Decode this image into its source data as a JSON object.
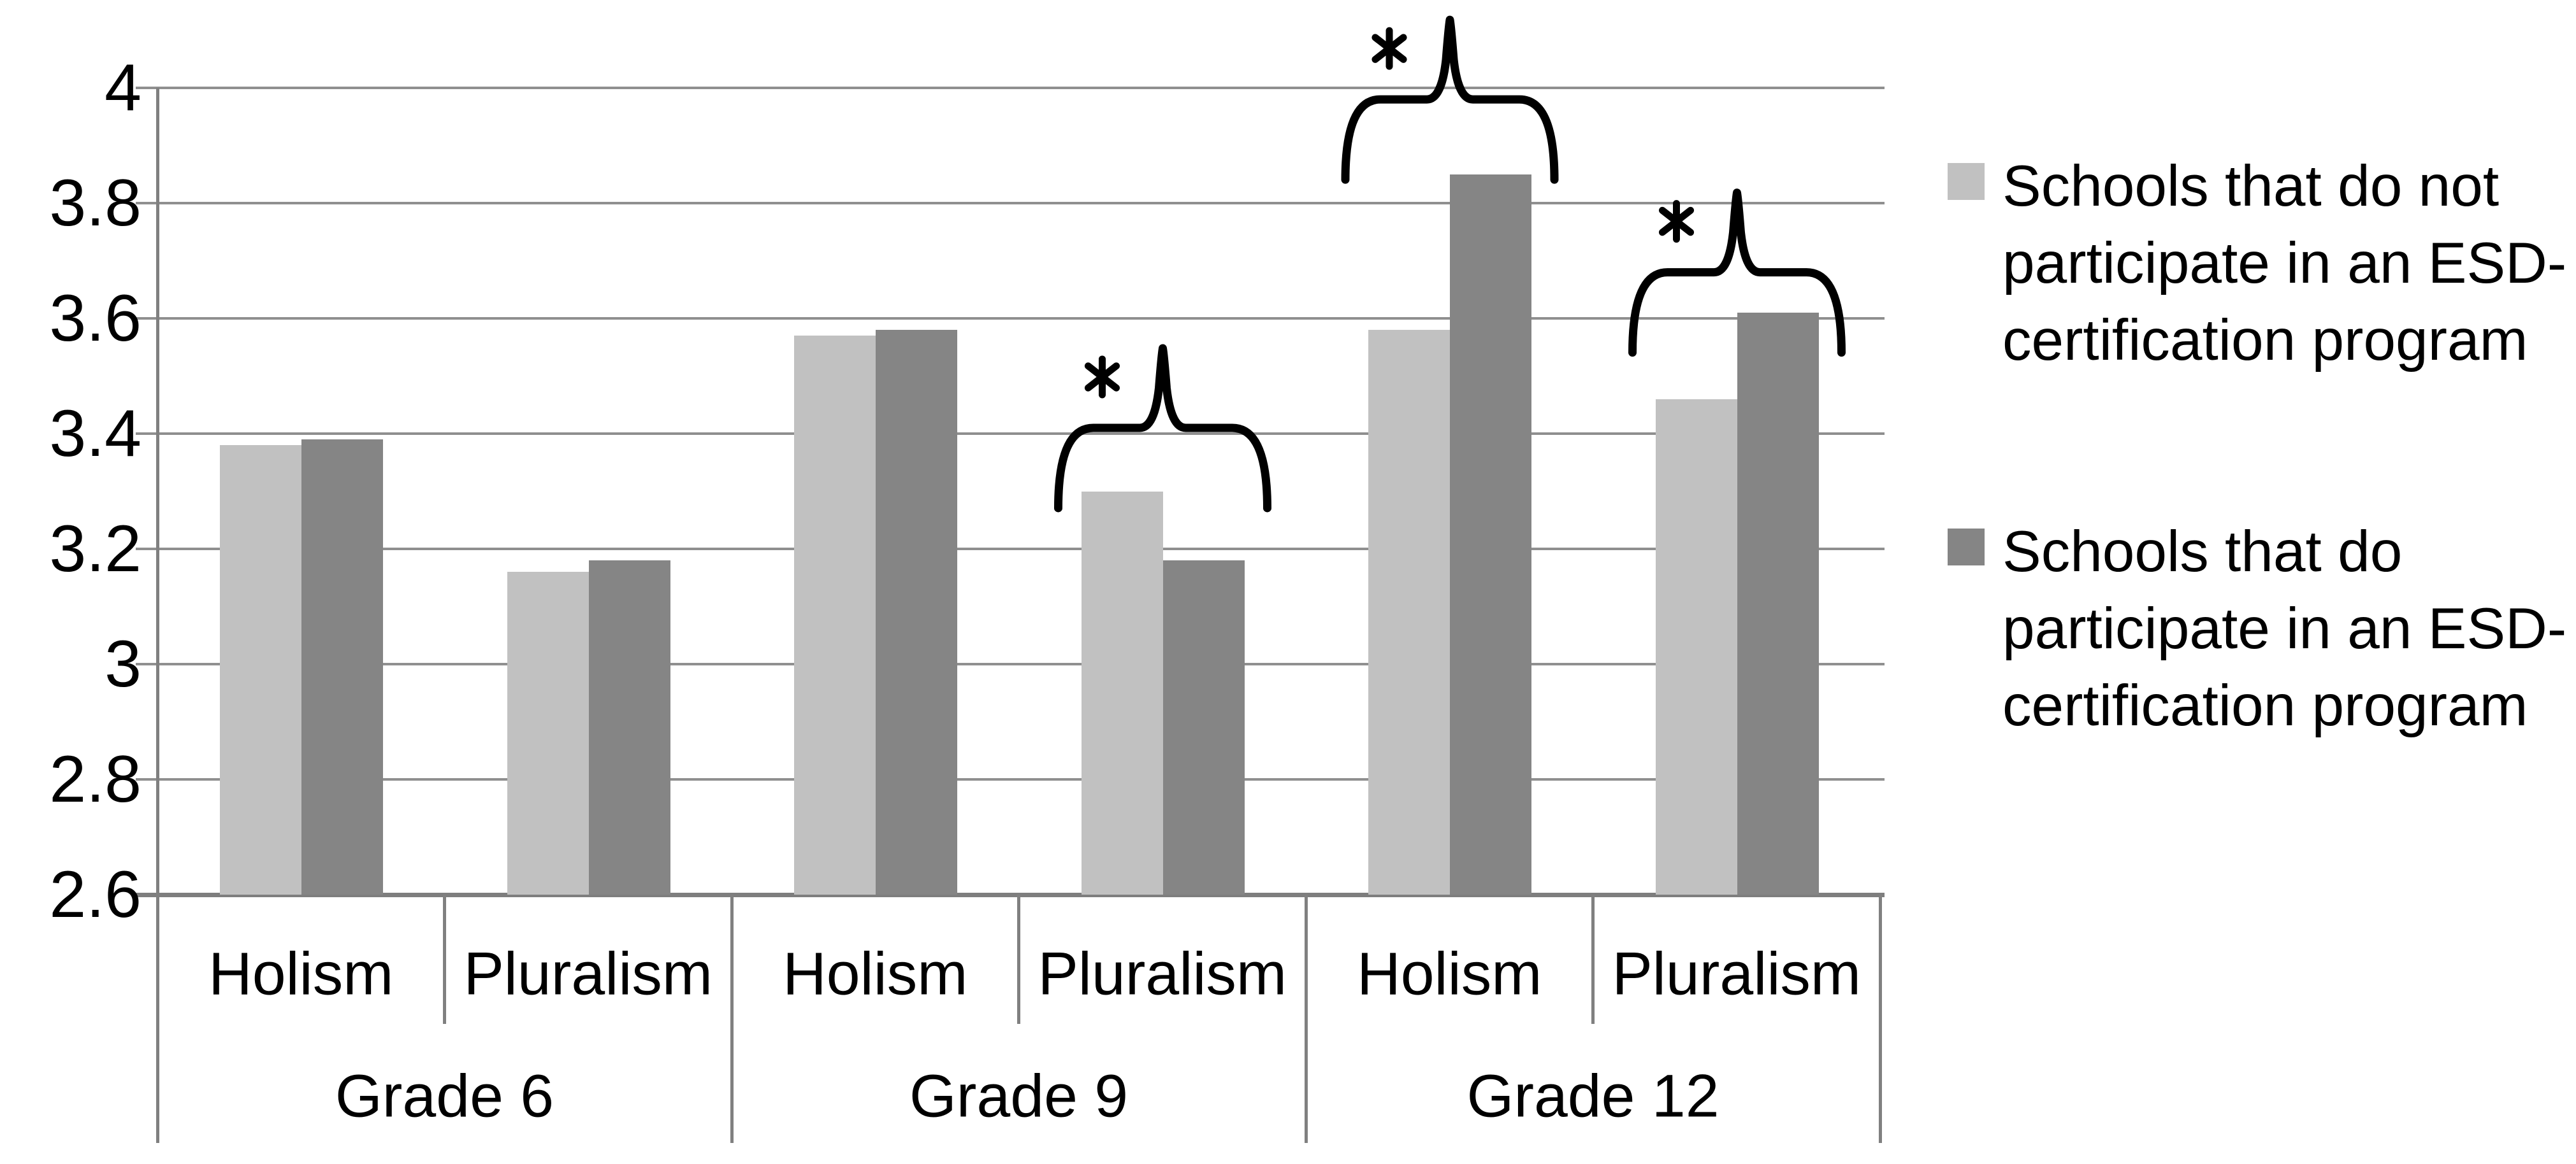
{
  "chart_data": {
    "type": "bar",
    "title": "",
    "y_axis": {
      "min": 2.6,
      "max": 4.0,
      "tick_step": 0.2,
      "tick_labels": [
        "4",
        "3.8",
        "3.6",
        "3.4",
        "3.2",
        "3",
        "2.8",
        "2.6"
      ],
      "grid": true
    },
    "groups": [
      "Grade 6",
      "Grade 9",
      "Grade 12"
    ],
    "cells": [
      {
        "group": "Grade 6",
        "category": "Holism"
      },
      {
        "group": "Grade 6",
        "category": "Pluralism"
      },
      {
        "group": "Grade 9",
        "category": "Holism"
      },
      {
        "group": "Grade 9",
        "category": "Pluralism"
      },
      {
        "group": "Grade 12",
        "category": "Holism"
      },
      {
        "group": "Grade 12",
        "category": "Pluralism"
      }
    ],
    "series": [
      {
        "name": "Schools that do not participate in an ESD-certification program",
        "color": "#c1c1c1",
        "values": [
          3.38,
          3.16,
          3.57,
          3.3,
          3.58,
          3.46
        ]
      },
      {
        "name": "Schools that do participate in an ESD-certification program",
        "color": "#858585",
        "values": [
          3.39,
          3.18,
          3.58,
          3.18,
          3.85,
          3.61
        ]
      }
    ],
    "annotations": [
      {
        "cell_index": 3,
        "label": "*",
        "brace_y": 3.41
      },
      {
        "cell_index": 4,
        "label": "*",
        "brace_y": 3.98
      },
      {
        "cell_index": 5,
        "label": "*",
        "brace_y": 3.68
      }
    ],
    "legend_position": "right"
  },
  "legend": {
    "entries": [
      {
        "symbol_color": "#c1c1c1",
        "lines": [
          "Schools that do not",
          "participate in an ESD-",
          "certification program"
        ]
      },
      {
        "symbol_color": "#858585",
        "lines": [
          "Schools that do",
          "participate in an ESD-",
          "certification program"
        ]
      }
    ]
  },
  "colors": {
    "gridline": "#8f8f8f",
    "axis": "#7e7e7e",
    "annotation": "#000000",
    "background": "#ffffff"
  }
}
